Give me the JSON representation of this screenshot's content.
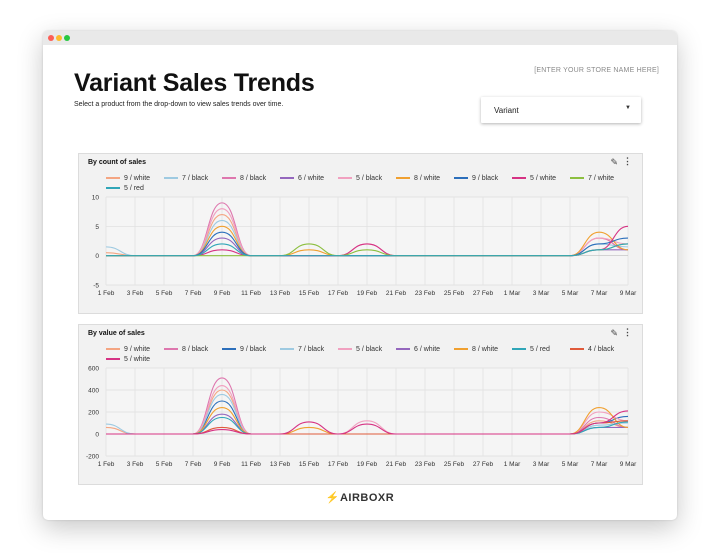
{
  "page": {
    "store_name": "[ENTER YOUR STORE NAME HERE]",
    "title": "Variant Sales Trends",
    "subtitle": "Select a product from the drop-down to view sales trends over time.",
    "dropdown": {
      "selected": "Variant"
    },
    "brand": "AIRBOXR",
    "icons": [
      "pencil-icon",
      "more-vert-icon",
      "bolt-icon",
      "caret-down-icon"
    ]
  },
  "chart_data": [
    {
      "type": "line",
      "title": "By count of sales",
      "categories": [
        "1 Feb",
        "3 Feb",
        "5 Feb",
        "7 Feb",
        "9 Feb",
        "11 Feb",
        "13 Feb",
        "15 Feb",
        "17 Feb",
        "19 Feb",
        "21 Feb",
        "23 Feb",
        "25 Feb",
        "27 Feb",
        "1 Mar",
        "3 Mar",
        "5 Mar",
        "7 Mar",
        "9 Mar"
      ],
      "yticks": [
        10,
        5,
        0,
        -5
      ],
      "ylim": [
        -5,
        10
      ],
      "legend_placement": "top",
      "grid": true,
      "series": [
        {
          "name": "9 / white",
          "color": "#f4a582",
          "values": [
            0.5,
            0,
            0,
            0,
            7,
            0,
            0,
            0,
            0,
            0,
            0,
            0,
            0,
            0,
            0,
            0,
            0,
            3,
            1
          ]
        },
        {
          "name": "7 / black",
          "color": "#9ecae1",
          "values": [
            1.5,
            0,
            0,
            0,
            6,
            0,
            0,
            0,
            0,
            0,
            0,
            0,
            0,
            0,
            0,
            0,
            0,
            2,
            1.5
          ]
        },
        {
          "name": "8 / black",
          "color": "#de77ae",
          "values": [
            0,
            0,
            0,
            0,
            9,
            0,
            0,
            0,
            0,
            0,
            0,
            0,
            0,
            0,
            0,
            0,
            0,
            3,
            1
          ]
        },
        {
          "name": "6 / white",
          "color": "#9467bd",
          "values": [
            0,
            0,
            0,
            0,
            3,
            0,
            0,
            0,
            0,
            0,
            0,
            0,
            0,
            0,
            0,
            0,
            0,
            1,
            1
          ]
        },
        {
          "name": "5 / black",
          "color": "#f1a1c0",
          "values": [
            0,
            0,
            0,
            0,
            8,
            0,
            0,
            0,
            0,
            2,
            0,
            0,
            0,
            0,
            0,
            0,
            0,
            3,
            2
          ]
        },
        {
          "name": "8 / white",
          "color": "#f0a030",
          "values": [
            0,
            0,
            0,
            0,
            5,
            0,
            0,
            1,
            0,
            0,
            0,
            0,
            0,
            0,
            0,
            0,
            0,
            4,
            1
          ]
        },
        {
          "name": "9 / black",
          "color": "#2c6fbb",
          "values": [
            0,
            0,
            0,
            0,
            4,
            0,
            0,
            0,
            0,
            0,
            0,
            0,
            0,
            0,
            0,
            0,
            0,
            2,
            3
          ]
        },
        {
          "name": "5 / white",
          "color": "#d63384",
          "values": [
            0,
            0,
            0,
            0,
            1,
            0,
            0,
            0,
            0,
            2,
            0,
            0,
            0,
            0,
            0,
            0,
            0,
            1,
            5
          ]
        },
        {
          "name": "7 / white",
          "color": "#8cbf3f",
          "values": [
            0,
            0,
            0,
            0,
            0,
            0,
            0,
            2,
            0,
            1,
            0,
            0,
            0,
            0,
            0,
            0,
            0,
            1,
            2
          ]
        },
        {
          "name": "5 / red",
          "color": "#30a6b8",
          "values": [
            0,
            0,
            0,
            0,
            2,
            0,
            0,
            0,
            0,
            0,
            0,
            0,
            0,
            0,
            0,
            0,
            0,
            1,
            2
          ]
        }
      ]
    },
    {
      "type": "line",
      "title": "By value of sales",
      "categories": [
        "1 Feb",
        "3 Feb",
        "5 Feb",
        "7 Feb",
        "9 Feb",
        "11 Feb",
        "13 Feb",
        "15 Feb",
        "17 Feb",
        "19 Feb",
        "21 Feb",
        "23 Feb",
        "25 Feb",
        "27 Feb",
        "1 Mar",
        "3 Mar",
        "5 Mar",
        "7 Mar",
        "9 Mar"
      ],
      "yticks": [
        600,
        400,
        200,
        0,
        -200
      ],
      "ylim": [
        -200,
        600
      ],
      "legend_placement": "top",
      "grid": true,
      "series": [
        {
          "name": "9 / white",
          "color": "#f4a582",
          "values": [
            60,
            0,
            0,
            0,
            400,
            0,
            0,
            0,
            0,
            0,
            0,
            0,
            0,
            0,
            0,
            0,
            0,
            120,
            60
          ]
        },
        {
          "name": "8 / black",
          "color": "#de77ae",
          "values": [
            0,
            0,
            0,
            0,
            510,
            0,
            0,
            0,
            0,
            0,
            0,
            0,
            0,
            0,
            0,
            0,
            0,
            150,
            60
          ]
        },
        {
          "name": "9 / black",
          "color": "#2c6fbb",
          "values": [
            0,
            0,
            0,
            0,
            300,
            0,
            0,
            0,
            0,
            0,
            0,
            0,
            0,
            0,
            0,
            0,
            0,
            100,
            160
          ]
        },
        {
          "name": "7 / black",
          "color": "#9ecae1",
          "values": [
            90,
            0,
            0,
            0,
            360,
            0,
            0,
            0,
            0,
            0,
            0,
            0,
            0,
            0,
            0,
            0,
            0,
            80,
            100
          ]
        },
        {
          "name": "5 / black",
          "color": "#f1a1c0",
          "values": [
            0,
            0,
            0,
            0,
            440,
            0,
            0,
            0,
            0,
            120,
            0,
            0,
            0,
            0,
            0,
            0,
            0,
            200,
            120
          ]
        },
        {
          "name": "6 / white",
          "color": "#9467bd",
          "values": [
            0,
            0,
            0,
            0,
            180,
            0,
            0,
            0,
            0,
            0,
            0,
            0,
            0,
            0,
            0,
            0,
            0,
            60,
            60
          ]
        },
        {
          "name": "8 / white",
          "color": "#f0a030",
          "values": [
            0,
            0,
            0,
            0,
            240,
            0,
            0,
            60,
            0,
            0,
            0,
            0,
            0,
            0,
            0,
            0,
            0,
            240,
            60
          ]
        },
        {
          "name": "5 / red",
          "color": "#30a6b8",
          "values": [
            0,
            0,
            0,
            0,
            150,
            0,
            0,
            0,
            0,
            0,
            0,
            0,
            0,
            0,
            0,
            0,
            0,
            60,
            110
          ]
        },
        {
          "name": "4 / black",
          "color": "#e05a3a",
          "values": [
            0,
            0,
            0,
            0,
            60,
            0,
            0,
            0,
            0,
            0,
            0,
            0,
            0,
            0,
            0,
            0,
            0,
            100,
            120
          ]
        },
        {
          "name": "5 / white",
          "color": "#d63384",
          "values": [
            0,
            0,
            0,
            0,
            40,
            0,
            0,
            110,
            0,
            90,
            0,
            0,
            0,
            0,
            0,
            0,
            0,
            100,
            210
          ]
        }
      ]
    }
  ]
}
